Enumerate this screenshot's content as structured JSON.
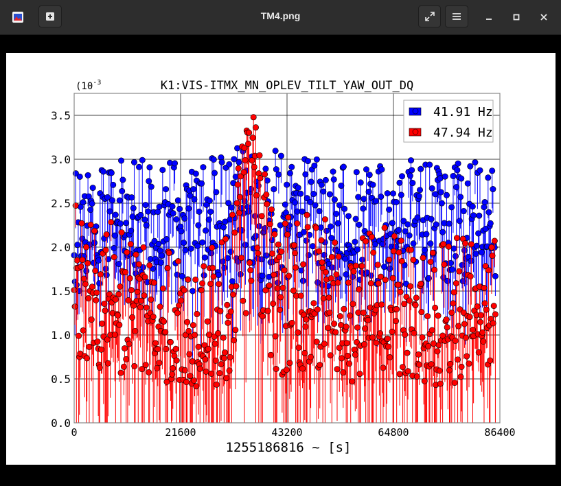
{
  "window": {
    "title": "TM4.png",
    "icons": {
      "app": "image-viewer-icon",
      "new": "plus-box-icon",
      "fullscreen": "expand-icon",
      "menu": "hamburger-icon",
      "minimize": "minimize-icon",
      "maximize": "maximize-icon",
      "close": "close-icon"
    }
  },
  "chart_data": {
    "type": "scatter",
    "title": "K1:VIS-ITMX_MN_OPLEV_TILT_YAW_OUT_DQ",
    "xlabel": "1255186816 ~ [s]",
    "ylabel": "",
    "y_multiplier_label": "(10",
    "y_multiplier_exponent": "-3",
    "xlim": [
      0,
      86400
    ],
    "ylim": [
      0,
      3.75
    ],
    "x_ticks": [
      0,
      21600,
      43200,
      64800,
      86400
    ],
    "x_tick_labels": [
      "0",
      "21600",
      "43200",
      "64800",
      "86400"
    ],
    "y_ticks": [
      0.0,
      0.5,
      1.0,
      1.5,
      2.0,
      2.5,
      3.0,
      3.5
    ],
    "y_tick_labels": [
      "0.0",
      "0.5",
      "1.0",
      "1.5",
      "2.0",
      "2.5",
      "3.0",
      "3.5"
    ],
    "grid": true,
    "legend_position": "top-right",
    "stem_style": true,
    "series": [
      {
        "name": "41.91 Hz",
        "color": "#0000ff",
        "x": [
          0,
          1800,
          3600,
          5400,
          7200,
          9000,
          10800,
          12600,
          14400,
          16200,
          18000,
          19800,
          21600,
          23400,
          25200,
          27000,
          28800,
          30600,
          32400,
          34200,
          36000,
          37800,
          39600,
          41400,
          43200,
          45000,
          46800,
          48600,
          50400,
          52200,
          54000,
          55800,
          57600,
          59400,
          61200,
          63000,
          64800,
          66600,
          68400,
          70200,
          72000,
          73800,
          75600,
          77400,
          79200,
          81000,
          82800,
          84600,
          86400
        ],
        "y": [
          2.1,
          2.2,
          2.4,
          2.3,
          2.5,
          2.2,
          2.3,
          2.4,
          2.2,
          2.3,
          2.5,
          2.3,
          2.2,
          2.4,
          2.1,
          2.3,
          2.4,
          2.2,
          2.3,
          2.6,
          2.4,
          2.2,
          2.1,
          2.3,
          2.4,
          2.2,
          2.3,
          2.5,
          2.4,
          2.2,
          2.3,
          2.1,
          2.2,
          2.4,
          2.3,
          2.2,
          2.1,
          2.3,
          2.2,
          2.4,
          2.1,
          2.2,
          2.3,
          2.2,
          2.4,
          2.3,
          2.1,
          2.2,
          2.1
        ],
        "y_max": [
          2.9,
          3.2,
          3.0,
          2.9,
          3.1,
          3.0,
          3.0,
          3.0,
          3.2,
          3.0,
          3.0,
          3.1,
          2.9,
          3.0,
          3.0,
          2.9,
          3.3,
          3.0,
          3.0,
          3.4,
          3.1,
          3.0,
          3.1,
          3.3,
          3.0,
          3.0,
          3.3,
          3.0,
          3.0,
          3.2,
          3.0,
          2.9,
          3.0,
          3.1,
          2.9,
          3.0,
          2.9,
          3.0,
          3.1,
          3.0,
          3.0,
          2.9,
          3.0,
          3.0,
          3.0,
          3.0,
          3.2,
          3.0,
          2.8
        ],
        "y_min": [
          1.3,
          1.4,
          1.5,
          1.6,
          1.5,
          1.6,
          1.6,
          1.6,
          1.5,
          1.6,
          1.5,
          1.6,
          1.5,
          1.5,
          1.4,
          1.6,
          1.5,
          1.6,
          1.5,
          1.6,
          1.6,
          1.5,
          1.4,
          1.5,
          1.5,
          1.5,
          1.6,
          1.6,
          1.5,
          1.5,
          1.5,
          1.6,
          1.6,
          1.6,
          1.5,
          1.6,
          1.6,
          1.5,
          1.5,
          1.6,
          1.4,
          1.6,
          1.5,
          1.6,
          1.6,
          1.6,
          1.5,
          1.6,
          1.6
        ]
      },
      {
        "name": "47.94 Hz",
        "color": "#ff0000",
        "x": [
          0,
          1800,
          3600,
          5400,
          7200,
          9000,
          10800,
          12600,
          14400,
          16200,
          18000,
          19800,
          21600,
          23400,
          25200,
          27000,
          28800,
          30600,
          32400,
          34200,
          36000,
          37800,
          39600,
          41400,
          43200,
          45000,
          46800,
          48600,
          50400,
          52200,
          54000,
          55800,
          57600,
          59400,
          61200,
          63000,
          64800,
          66600,
          68400,
          70200,
          72000,
          73800,
          75600,
          77400,
          79200,
          81000,
          82800,
          84600,
          86400
        ],
        "y": [
          1.7,
          1.6,
          1.5,
          1.3,
          1.4,
          1.2,
          1.3,
          1.4,
          1.3,
          1.2,
          1.1,
          0.9,
          1.0,
          1.0,
          0.9,
          1.0,
          0.9,
          1.0,
          1.6,
          2.5,
          3.0,
          2.6,
          1.5,
          1.2,
          1.1,
          1.2,
          1.3,
          1.4,
          1.3,
          1.2,
          1.0,
          0.9,
          1.1,
          1.2,
          1.1,
          1.0,
          1.1,
          1.2,
          1.1,
          1.0,
          1.0,
          0.9,
          1.1,
          1.0,
          1.2,
          1.3,
          1.4,
          1.3,
          1.2
        ],
        "y_max": [
          2.7,
          2.2,
          2.3,
          2.2,
          2.3,
          2.3,
          2.2,
          2.0,
          2.0,
          1.8,
          2.0,
          2.2,
          1.8,
          1.9,
          1.7,
          1.9,
          2.1,
          2.1,
          2.6,
          3.2,
          3.55,
          3.3,
          2.5,
          2.4,
          2.5,
          2.3,
          2.4,
          2.4,
          2.4,
          2.2,
          1.9,
          2.0,
          2.1,
          2.3,
          2.2,
          2.3,
          2.2,
          2.1,
          2.1,
          2.2,
          1.9,
          2.1,
          2.0,
          2.1,
          2.2,
          2.1,
          2.3,
          2.2,
          2.0
        ],
        "y_min": [
          0.3,
          0.2,
          0.0,
          0.0,
          0.4,
          0.2,
          0.1,
          0.0,
          0.0,
          0.0,
          0.0,
          0.0,
          0.0,
          0.0,
          0.0,
          0.0,
          0.0,
          0.0,
          0.0,
          0.3,
          0.7,
          0.3,
          0.0,
          0.0,
          0.0,
          0.0,
          0.0,
          0.0,
          0.0,
          0.0,
          0.0,
          0.0,
          0.0,
          0.0,
          0.0,
          0.0,
          0.0,
          0.0,
          0.0,
          0.0,
          0.1,
          0.3,
          0.0,
          0.0,
          0.0,
          0.0,
          0.1,
          0.2,
          0.0
        ]
      }
    ]
  }
}
